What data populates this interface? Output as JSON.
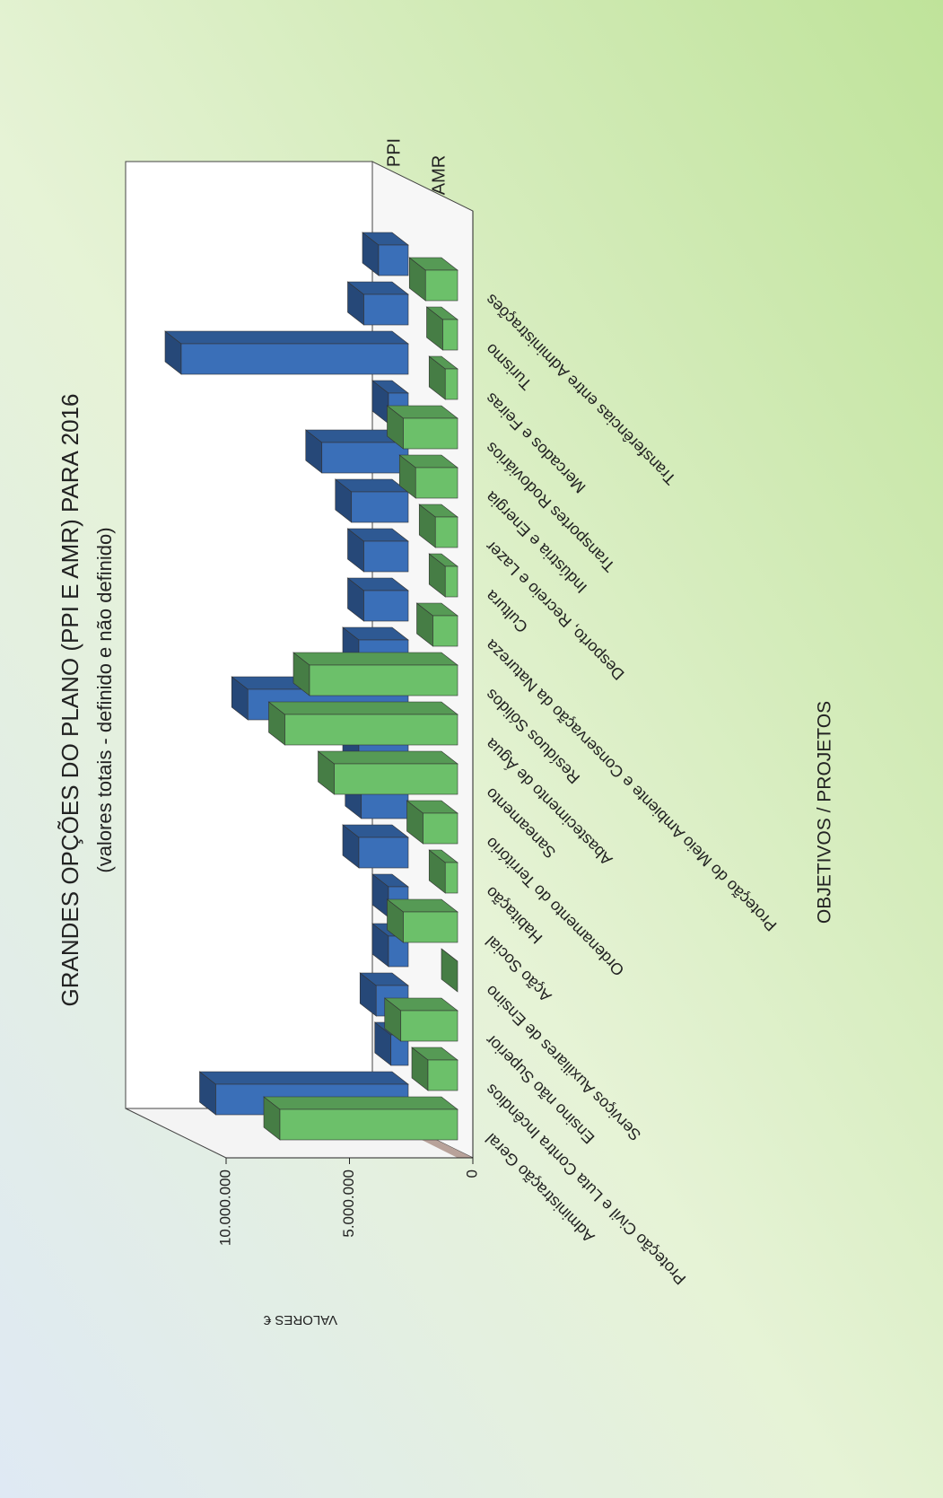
{
  "chart_data": {
    "type": "bar3d",
    "title": "GRANDES OPÇÕES DO PLANO (PPI E AMR) PARA 2016",
    "subtitle": "(valores totais - definido e não definido)",
    "y_label": "VALORES €",
    "x_label": "OBJETIVOS / PROJETOS",
    "categories": [
      "Administração Geral",
      "Proteção Civil e Luta Contra Incêndios",
      "Ensino não Superior",
      "Serviços Auxiliares de Ensino",
      "Ação Social",
      "Habitação",
      "Ordenamento do Território",
      "Saneamento",
      "Abastecimento de Água",
      "Resíduos Sólidos",
      "Proteção do Meio Ambiente e Conservação da Natureza",
      "Cultura",
      "Desporto, Recreio e Lazer",
      "Indústria e Energia",
      "Transportes Rodoviários",
      "Mercados e Feiras",
      "Turismo",
      "Transferências entre Administrações"
    ],
    "series": [
      {
        "name": "PPI",
        "color": "#3a6fb8",
        "values": [
          7800000,
          700000,
          1300000,
          800000,
          800000,
          2000000,
          1900000,
          2000000,
          6500000,
          2000000,
          1800000,
          1800000,
          2300000,
          3500000,
          800000,
          9200000,
          1800000,
          1200000
        ]
      },
      {
        "name": "AMR",
        "color": "#6cc06a",
        "values": [
          7200000,
          1200000,
          2300000,
          0,
          2200000,
          500000,
          1400000,
          5000000,
          7000000,
          6000000,
          1000000,
          500000,
          900000,
          1700000,
          2200000,
          500000,
          600000,
          1300000
        ]
      }
    ],
    "ylim": [
      0,
      10000000
    ],
    "yticks": [
      0,
      {
        "value": 5000000,
        "label": "5.000.000"
      },
      {
        "value": 10000000,
        "label": "10.000.000"
      }
    ]
  }
}
